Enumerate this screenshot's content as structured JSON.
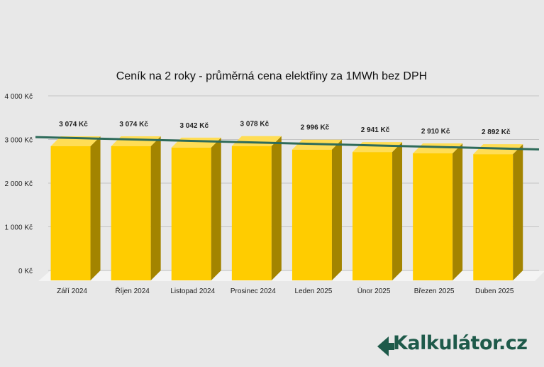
{
  "chart_data": {
    "type": "bar",
    "title": "Ceník na 2 roky - průměrná cena elektřiny za 1MWh bez DPH",
    "categories": [
      "Září 2024",
      "Říjen 2024",
      "Listopad 2024",
      "Prosinec 2024",
      "Leden 2025",
      "Únor 2025",
      "Březen 2025",
      "Duben 2025"
    ],
    "values": [
      3074,
      3074,
      3042,
      3078,
      2996,
      2941,
      2910,
      2892
    ],
    "data_labels": [
      "3 074 Kč",
      "3 074 Kč",
      "3 042 Kč",
      "3 078 Kč",
      "2 996 Kč",
      "2 941 Kč",
      "2 910 Kč",
      "2 892 Kč"
    ],
    "yticks": [
      "0 Kč",
      "1 000 Kč",
      "2 000 Kč",
      "3 000 Kč",
      "4 000 Kč"
    ],
    "ylim": [
      0,
      4000
    ],
    "grid": true,
    "style": "3d-bar",
    "bar_color": "#ffcc00",
    "bar_side_color": "#a38400",
    "bar_top_color": "#ffdd55",
    "trendline": {
      "from": 3120,
      "to": 2870,
      "color": "#2e6b5a"
    }
  },
  "logo": {
    "text": "Kalkulátor.cz",
    "color": "#1e5a4a"
  }
}
